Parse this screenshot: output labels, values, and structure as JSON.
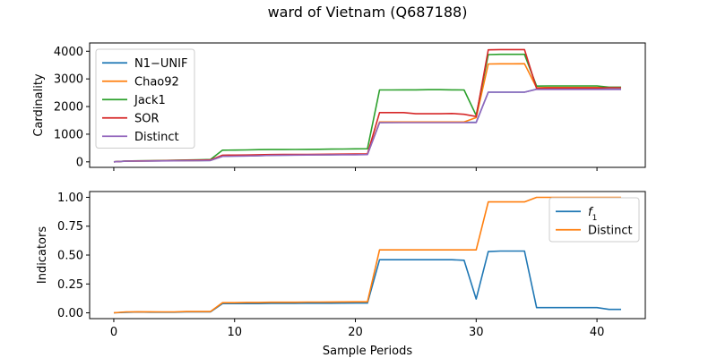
{
  "figure": {
    "title": "ward of Vietnam (Q687188)"
  },
  "colors": {
    "blue": "#1f77b4",
    "orange": "#ff7f0e",
    "green": "#2ca02c",
    "red": "#d62728",
    "purple": "#9467bd"
  },
  "chart_data": [
    {
      "type": "line",
      "ylabel": "Cardinality",
      "xlabel": "",
      "xlim": [
        -2,
        44
      ],
      "ylim": [
        -200,
        4300
      ],
      "xticks": [
        0,
        10,
        20,
        30,
        40
      ],
      "yticks": [
        0,
        1000,
        2000,
        3000,
        4000
      ],
      "legend": "top-left",
      "x": [
        0,
        1,
        2,
        3,
        4,
        5,
        6,
        7,
        8,
        9,
        10,
        11,
        12,
        13,
        14,
        15,
        16,
        17,
        18,
        19,
        20,
        21,
        22,
        23,
        24,
        25,
        26,
        27,
        28,
        29,
        30,
        31,
        32,
        33,
        34,
        35,
        36,
        37,
        38,
        39,
        40,
        41,
        42
      ],
      "series": [
        {
          "name": "N1−UNIF",
          "color": "#1f77b4",
          "values": [
            0,
            25,
            28,
            32,
            35,
            38,
            42,
            46,
            50,
            200,
            210,
            215,
            225,
            240,
            245,
            248,
            252,
            255,
            258,
            262,
            265,
            270,
            1420,
            1425,
            1430,
            1430,
            1430,
            1430,
            1430,
            1430,
            1430,
            2520,
            2520,
            2520,
            2520,
            2630,
            2630,
            2630,
            2630,
            2630,
            2630,
            2630,
            2630
          ]
        },
        {
          "name": "Chao92",
          "color": "#ff7f0e",
          "values": [
            0,
            28,
            30,
            33,
            36,
            40,
            45,
            50,
            55,
            205,
            215,
            220,
            230,
            245,
            250,
            252,
            255,
            258,
            262,
            266,
            270,
            275,
            1440,
            1440,
            1440,
            1440,
            1440,
            1440,
            1440,
            1440,
            1600,
            3540,
            3545,
            3545,
            3550,
            2680,
            2690,
            2690,
            2690,
            2690,
            2690,
            2690,
            2690
          ]
        },
        {
          "name": "Jack1",
          "color": "#2ca02c",
          "values": [
            0,
            30,
            35,
            40,
            45,
            55,
            65,
            75,
            85,
            420,
            425,
            430,
            440,
            445,
            445,
            448,
            450,
            455,
            460,
            465,
            470,
            475,
            2600,
            2600,
            2605,
            2605,
            2610,
            2610,
            2605,
            2600,
            1680,
            3880,
            3890,
            3890,
            3890,
            2740,
            2745,
            2745,
            2745,
            2745,
            2745,
            2700,
            2700
          ]
        },
        {
          "name": "SOR",
          "color": "#d62728",
          "values": [
            0,
            28,
            32,
            36,
            40,
            48,
            55,
            62,
            68,
            240,
            245,
            248,
            255,
            262,
            265,
            268,
            270,
            272,
            275,
            278,
            282,
            286,
            1780,
            1780,
            1780,
            1740,
            1740,
            1740,
            1750,
            1720,
            1640,
            4050,
            4060,
            4060,
            4060,
            2660,
            2670,
            2670,
            2670,
            2670,
            2670,
            2680,
            2680
          ]
        },
        {
          "name": "Distinct",
          "color": "#9467bd",
          "values": [
            0,
            24,
            27,
            30,
            33,
            36,
            40,
            44,
            48,
            198,
            205,
            212,
            220,
            235,
            240,
            243,
            246,
            249,
            252,
            255,
            258,
            262,
            1420,
            1420,
            1420,
            1420,
            1420,
            1420,
            1420,
            1420,
            1420,
            2520,
            2520,
            2520,
            2520,
            2620,
            2620,
            2620,
            2620,
            2620,
            2620,
            2620,
            2620
          ]
        }
      ]
    },
    {
      "type": "line",
      "ylabel": "Indicators",
      "xlabel": "Sample Periods",
      "xlim": [
        -2,
        44
      ],
      "ylim": [
        -0.05,
        1.05
      ],
      "xticks": [
        0,
        10,
        20,
        30,
        40
      ],
      "yticks": [
        0.0,
        0.25,
        0.5,
        0.75,
        1.0
      ],
      "legend": "top-right",
      "x": [
        0,
        1,
        2,
        3,
        4,
        5,
        6,
        7,
        8,
        9,
        10,
        11,
        12,
        13,
        14,
        15,
        16,
        17,
        18,
        19,
        20,
        21,
        22,
        23,
        24,
        25,
        26,
        27,
        28,
        29,
        30,
        31,
        32,
        33,
        34,
        35,
        36,
        37,
        38,
        39,
        40,
        41,
        42
      ],
      "series": [
        {
          "name": "f1",
          "color": "#1f77b4",
          "values": [
            0.0,
            0.005,
            0.007,
            0.006,
            0.006,
            0.006,
            0.008,
            0.008,
            0.008,
            0.08,
            0.08,
            0.08,
            0.08,
            0.082,
            0.082,
            0.082,
            0.083,
            0.083,
            0.083,
            0.084,
            0.085,
            0.085,
            0.46,
            0.46,
            0.46,
            0.46,
            0.46,
            0.46,
            0.46,
            0.455,
            0.12,
            0.53,
            0.535,
            0.535,
            0.535,
            0.045,
            0.045,
            0.045,
            0.045,
            0.045,
            0.045,
            0.03,
            0.03
          ]
        },
        {
          "name": "Distinct",
          "color": "#ff7f0e",
          "values": [
            0.0,
            0.008,
            0.009,
            0.009,
            0.008,
            0.008,
            0.011,
            0.011,
            0.011,
            0.088,
            0.088,
            0.09,
            0.09,
            0.092,
            0.092,
            0.092,
            0.093,
            0.093,
            0.094,
            0.095,
            0.096,
            0.096,
            0.545,
            0.545,
            0.545,
            0.545,
            0.545,
            0.545,
            0.545,
            0.545,
            0.545,
            0.96,
            0.96,
            0.96,
            0.96,
            1.0,
            1.0,
            1.0,
            1.0,
            1.0,
            1.0,
            1.0,
            1.0
          ]
        }
      ]
    }
  ]
}
